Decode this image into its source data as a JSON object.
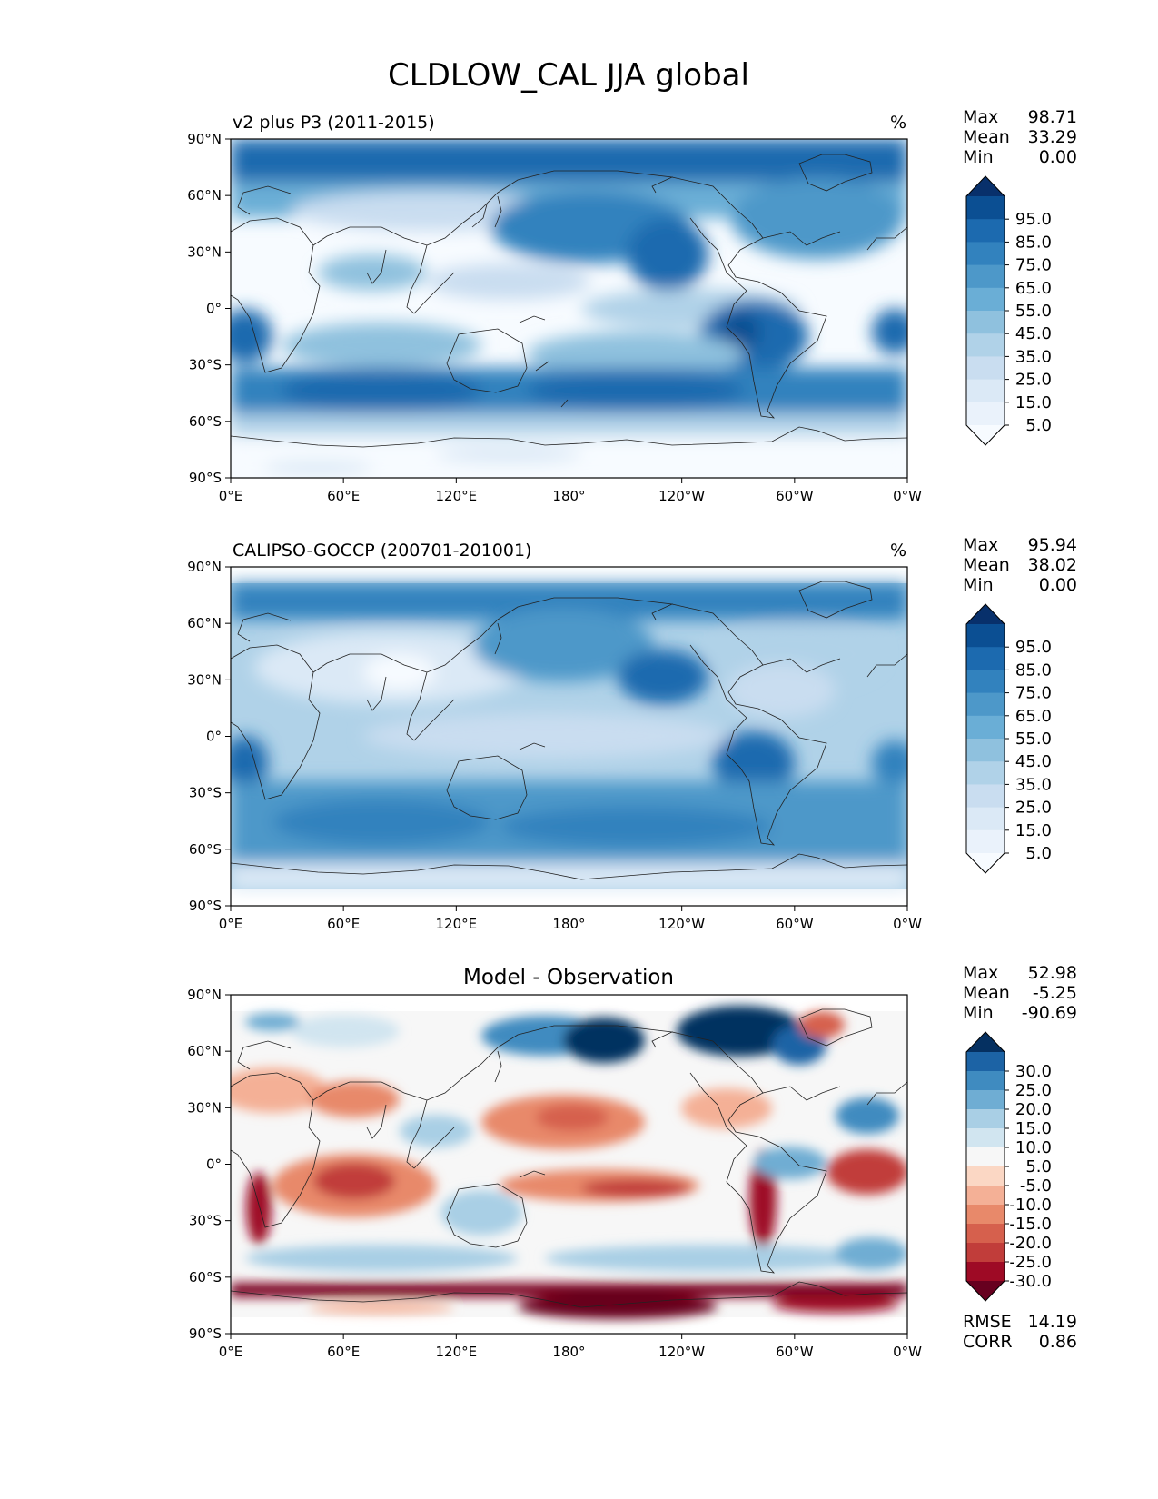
{
  "title": "CLDLOW_CAL JJA global",
  "x_tick_labels": [
    "0°E",
    "60°E",
    "120°E",
    "180°",
    "120°W",
    "60°W",
    "0°W"
  ],
  "y_tick_labels": [
    "90°N",
    "60°N",
    "30°N",
    "0°",
    "30°S",
    "60°S",
    "90°S"
  ],
  "panels": [
    {
      "id": "model",
      "title": "v2 plus P3 (2011-2015)",
      "units": "%",
      "stats": [
        {
          "label": "Max",
          "value": "98.71"
        },
        {
          "label": "Mean",
          "value": "33.29"
        },
        {
          "label": "Min",
          "value": "0.00"
        }
      ],
      "colorbar": {
        "labels": [
          "95.0",
          "85.0",
          "75.0",
          "65.0",
          "55.0",
          "45.0",
          "35.0",
          "25.0",
          "15.0",
          "5.0"
        ],
        "colors": [
          "#f7fbff",
          "#eaf2fb",
          "#dbe9f6",
          "#c9ddf0",
          "#b0d2e8",
          "#8fc1de",
          "#6aaed6",
          "#4d98c9",
          "#3282be",
          "#1c6aaf",
          "#0b4f93",
          "#08306b"
        ]
      }
    },
    {
      "id": "obs",
      "title": "CALIPSO-GOCCP (200701-201001)",
      "units": "%",
      "stats": [
        {
          "label": "Max",
          "value": "95.94"
        },
        {
          "label": "Mean",
          "value": "38.02"
        },
        {
          "label": "Min",
          "value": "0.00"
        }
      ],
      "colorbar": {
        "labels": [
          "95.0",
          "85.0",
          "75.0",
          "65.0",
          "55.0",
          "45.0",
          "35.0",
          "25.0",
          "15.0",
          "5.0"
        ],
        "colors": [
          "#f7fbff",
          "#eaf2fb",
          "#dbe9f6",
          "#c9ddf0",
          "#b0d2e8",
          "#8fc1de",
          "#6aaed6",
          "#4d98c9",
          "#3282be",
          "#1c6aaf",
          "#0b4f93",
          "#08306b"
        ]
      }
    },
    {
      "id": "diff",
      "title": "Model - Observation",
      "stats": [
        {
          "label": "Max",
          "value": "52.98"
        },
        {
          "label": "Mean",
          "value": "-5.25"
        },
        {
          "label": "Min",
          "value": "-90.69"
        }
      ],
      "extra_stats": [
        {
          "label": "RMSE",
          "value": "14.19"
        },
        {
          "label": "CORR",
          "value": "0.86"
        }
      ],
      "colorbar": {
        "labels": [
          "30.0",
          "25.0",
          "20.0",
          "15.0",
          "10.0",
          "5.0",
          "-5.0",
          "-10.0",
          "-15.0",
          "-20.0",
          "-25.0",
          "-30.0"
        ],
        "colors": [
          "#67001f",
          "#9e0a25",
          "#c13d3a",
          "#d6604d",
          "#e8896a",
          "#f4b096",
          "#fbd7c4",
          "#f7f7f7",
          "#d1e5f0",
          "#a9cfe5",
          "#6fadd3",
          "#3f8bc0",
          "#1c63a5",
          "#053061"
        ]
      }
    }
  ],
  "chart_data": {
    "type": "heatmap",
    "title": "CLDLOW_CAL JJA global",
    "xlim": [
      0,
      360
    ],
    "ylim": [
      -90,
      90
    ],
    "x_ticks": [
      0,
      60,
      120,
      180,
      240,
      300,
      360
    ],
    "y_ticks": [
      90,
      60,
      30,
      0,
      -30,
      -60,
      -90
    ],
    "maps": [
      {
        "title": "v2 plus P3 (2011-2015)",
        "units": "%",
        "max": 98.71,
        "mean": 33.29,
        "min": 0.0,
        "levels": [
          5,
          15,
          25,
          35,
          45,
          55,
          65,
          75,
          85,
          95
        ]
      },
      {
        "title": "CALIPSO-GOCCP (200701-201001)",
        "units": "%",
        "max": 95.94,
        "mean": 38.02,
        "min": 0.0,
        "levels": [
          5,
          15,
          25,
          35,
          45,
          55,
          65,
          75,
          85,
          95
        ]
      },
      {
        "title": "Model - Observation",
        "max": 52.98,
        "mean": -5.25,
        "min": -90.69,
        "rmse": 14.19,
        "corr": 0.86,
        "levels": [
          -30,
          -25,
          -20,
          -15,
          -10,
          -5,
          5,
          10,
          15,
          20,
          25,
          30
        ]
      }
    ]
  }
}
